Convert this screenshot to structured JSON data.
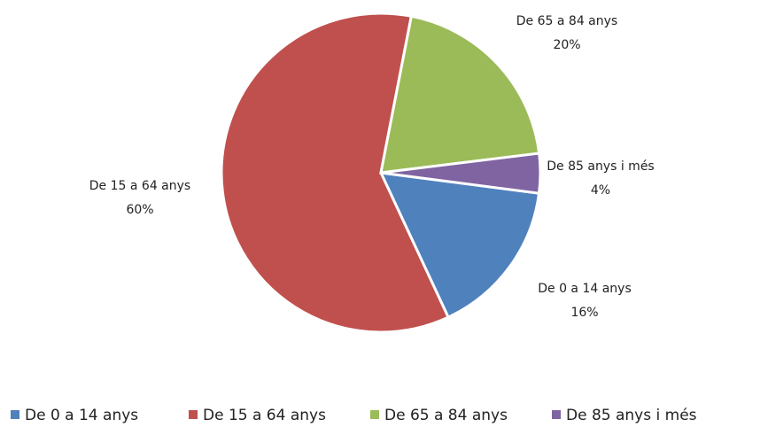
{
  "chart_data": {
    "type": "pie",
    "categories": [
      "De 0 a 14 anys",
      "De 15 a 64 anys",
      "De 65 a 84 anys",
      "De 85 anys i més"
    ],
    "values": [
      16,
      60,
      20,
      4
    ],
    "value_labels": [
      "16%",
      "60%",
      "20%",
      "4%"
    ],
    "colors": [
      "#4f81bd",
      "#c0504d",
      "#9bbb59",
      "#8064a2"
    ],
    "legend": "bottom"
  }
}
